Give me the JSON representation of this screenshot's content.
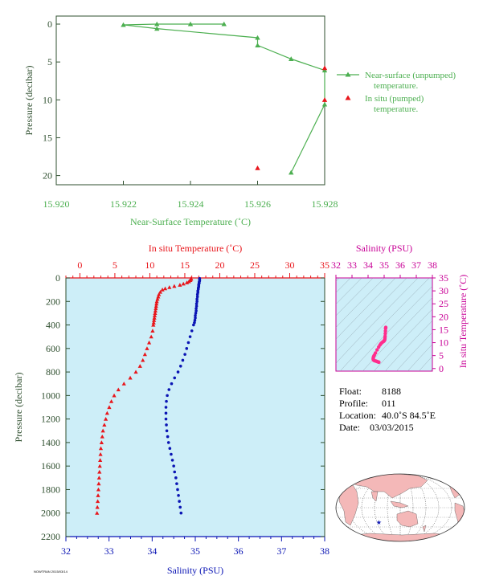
{
  "colors": {
    "green": "#4caf50",
    "axis_green": "#2f4f2f",
    "red": "#e8151b",
    "blue": "#0a14b4",
    "magenta": "#c80096",
    "pink": "#ff2d8c",
    "panel_bg": "#cdeef8",
    "land": "#f4b8b8",
    "ocean": "#ffffff"
  },
  "footer": "NOWTRAN 2015/03/14",
  "chart_data": [
    {
      "id": "near_surface",
      "type": "line",
      "xlabel": "Near-Surface Temperature (˚C)",
      "ylabel": "Pressure (decibar)",
      "xlim": [
        15.92,
        15.928
      ],
      "ylim": [
        0,
        22
      ],
      "y_inverted": true,
      "xticks": [
        "15.920",
        "15.922",
        "15.924",
        "15.926",
        "15.928"
      ],
      "xtick_values": [
        15.92,
        15.922,
        15.924,
        15.926,
        15.928
      ],
      "yticks": [
        "0",
        "5",
        "10",
        "15",
        "20"
      ],
      "ytick_values": [
        0,
        5,
        10,
        15,
        20
      ],
      "grid": false,
      "legend_placement": "right",
      "series": [
        {
          "name": "Near-surface (unpumped) temperature.",
          "legend_lines": [
            "Near-surface (unpumped)",
            "temperature."
          ],
          "marker": "triangle",
          "line": true,
          "points": [
            [
              15.925,
              0.0
            ],
            [
              15.924,
              0.0
            ],
            [
              15.923,
              0.0
            ],
            [
              15.922,
              0.1
            ],
            [
              15.923,
              0.6
            ],
            [
              15.926,
              1.8
            ],
            [
              15.926,
              2.8
            ],
            [
              15.927,
              4.6
            ],
            [
              15.928,
              6.1
            ],
            [
              15.928,
              10.6
            ],
            [
              15.927,
              19.6
            ]
          ]
        },
        {
          "name": "In situ (pumped) temperature.",
          "legend_lines": [
            "In situ (pumped)",
            "temperature."
          ],
          "marker": "triangle",
          "line": false,
          "points": [
            [
              15.928,
              5.8
            ],
            [
              15.928,
              10.0
            ],
            [
              15.926,
              19.0
            ]
          ]
        }
      ]
    },
    {
      "id": "profile",
      "type": "scatter",
      "ylabel": "Pressure (decibar)",
      "ylim": [
        0,
        2200
      ],
      "y_inverted": true,
      "yticks": [
        "0",
        "200",
        "400",
        "600",
        "800",
        "1000",
        "1200",
        "1400",
        "1600",
        "1800",
        "2000",
        "2200"
      ],
      "ytick_values": [
        0,
        200,
        400,
        600,
        800,
        1000,
        1200,
        1400,
        1600,
        1800,
        2000,
        2200
      ],
      "temp_axis": {
        "label": "In situ Temperature (˚C)",
        "lim": [
          -2,
          35
        ],
        "ticks": [
          "0",
          "5",
          "10",
          "15",
          "20",
          "25",
          "30",
          "35"
        ],
        "tick_values": [
          0,
          5,
          10,
          15,
          20,
          25,
          30,
          35
        ]
      },
      "sal_axis": {
        "label": "Salinity (PSU)",
        "lim": [
          32,
          38
        ],
        "ticks": [
          "32",
          "33",
          "34",
          "35",
          "36",
          "37",
          "38"
        ],
        "tick_values": [
          32,
          33,
          34,
          35,
          36,
          37,
          38
        ]
      },
      "grid": false,
      "temperature_profile": [
        [
          15.9,
          5
        ],
        [
          15.9,
          10
        ],
        [
          15.8,
          20
        ],
        [
          15.6,
          30
        ],
        [
          15.3,
          40
        ],
        [
          14.8,
          50
        ],
        [
          14.3,
          60
        ],
        [
          13.5,
          70
        ],
        [
          12.8,
          80
        ],
        [
          12.2,
          90
        ],
        [
          11.8,
          100
        ],
        [
          11.5,
          120
        ],
        [
          11.3,
          140
        ],
        [
          11.2,
          160
        ],
        [
          11.1,
          180
        ],
        [
          11.0,
          200
        ],
        [
          10.95,
          220
        ],
        [
          10.9,
          240
        ],
        [
          10.85,
          260
        ],
        [
          10.8,
          280
        ],
        [
          10.75,
          300
        ],
        [
          10.7,
          320
        ],
        [
          10.65,
          340
        ],
        [
          10.6,
          360
        ],
        [
          10.55,
          380
        ],
        [
          10.5,
          400
        ],
        [
          10.4,
          450
        ],
        [
          10.2,
          500
        ],
        [
          9.9,
          550
        ],
        [
          9.6,
          600
        ],
        [
          9.3,
          650
        ],
        [
          9.0,
          700
        ],
        [
          8.6,
          750
        ],
        [
          8.0,
          800
        ],
        [
          7.2,
          850
        ],
        [
          6.3,
          900
        ],
        [
          5.5,
          950
        ],
        [
          4.9,
          1000
        ],
        [
          4.5,
          1050
        ],
        [
          4.2,
          1100
        ],
        [
          3.9,
          1150
        ],
        [
          3.7,
          1200
        ],
        [
          3.5,
          1250
        ],
        [
          3.3,
          1300
        ],
        [
          3.2,
          1350
        ],
        [
          3.1,
          1400
        ],
        [
          3.0,
          1450
        ],
        [
          2.95,
          1500
        ],
        [
          2.9,
          1550
        ],
        [
          2.85,
          1600
        ],
        [
          2.8,
          1650
        ],
        [
          2.75,
          1700
        ],
        [
          2.7,
          1750
        ],
        [
          2.65,
          1800
        ],
        [
          2.6,
          1850
        ],
        [
          2.55,
          1900
        ],
        [
          2.5,
          1950
        ],
        [
          2.45,
          2000
        ]
      ],
      "salinity_profile": [
        [
          35.1,
          5
        ],
        [
          35.1,
          15
        ],
        [
          35.1,
          25
        ],
        [
          35.09,
          35
        ],
        [
          35.09,
          45
        ],
        [
          35.08,
          55
        ],
        [
          35.08,
          65
        ],
        [
          35.08,
          75
        ],
        [
          35.07,
          85
        ],
        [
          35.07,
          95
        ],
        [
          35.06,
          110
        ],
        [
          35.06,
          125
        ],
        [
          35.05,
          140
        ],
        [
          35.05,
          160
        ],
        [
          35.04,
          180
        ],
        [
          35.04,
          200
        ],
        [
          35.03,
          220
        ],
        [
          35.03,
          240
        ],
        [
          35.02,
          260
        ],
        [
          35.02,
          280
        ],
        [
          35.01,
          300
        ],
        [
          35.0,
          320
        ],
        [
          35.0,
          340
        ],
        [
          34.99,
          360
        ],
        [
          34.98,
          380
        ],
        [
          34.96,
          400
        ],
        [
          34.92,
          450
        ],
        [
          34.88,
          500
        ],
        [
          34.84,
          550
        ],
        [
          34.8,
          600
        ],
        [
          34.76,
          650
        ],
        [
          34.71,
          700
        ],
        [
          34.66,
          750
        ],
        [
          34.6,
          800
        ],
        [
          34.52,
          850
        ],
        [
          34.45,
          900
        ],
        [
          34.39,
          950
        ],
        [
          34.35,
          1000
        ],
        [
          34.33,
          1050
        ],
        [
          34.32,
          1100
        ],
        [
          34.32,
          1150
        ],
        [
          34.32,
          1200
        ],
        [
          34.33,
          1250
        ],
        [
          34.34,
          1300
        ],
        [
          34.36,
          1350
        ],
        [
          34.38,
          1400
        ],
        [
          34.41,
          1450
        ],
        [
          34.44,
          1500
        ],
        [
          34.47,
          1550
        ],
        [
          34.5,
          1600
        ],
        [
          34.52,
          1650
        ],
        [
          34.55,
          1700
        ],
        [
          34.57,
          1750
        ],
        [
          34.59,
          1800
        ],
        [
          34.61,
          1850
        ],
        [
          34.63,
          1900
        ],
        [
          34.65,
          1950
        ],
        [
          34.67,
          2000
        ]
      ]
    },
    {
      "id": "ts_diagram",
      "type": "scatter",
      "xlabel": "Salinity (PSU)",
      "ylabel": "In situ Temperature (˚C)",
      "xlim": [
        32,
        38
      ],
      "ylim": [
        -1,
        35
      ],
      "xticks": [
        "32",
        "33",
        "34",
        "35",
        "36",
        "37",
        "38"
      ],
      "xtick_values": [
        32,
        33,
        34,
        35,
        36,
        37,
        38
      ],
      "yticks": [
        "0",
        "5",
        "10",
        "15",
        "20",
        "25",
        "30",
        "35"
      ],
      "ytick_values": [
        0,
        5,
        10,
        15,
        20,
        25,
        30,
        35
      ],
      "density_contours": true,
      "points": [
        [
          35.1,
          15.9
        ],
        [
          35.09,
          15.5
        ],
        [
          35.08,
          14.5
        ],
        [
          35.07,
          13.5
        ],
        [
          35.06,
          12.5
        ],
        [
          35.05,
          11.8
        ],
        [
          35.04,
          11.2
        ],
        [
          35.02,
          10.9
        ],
        [
          35.0,
          10.7
        ],
        [
          34.97,
          10.5
        ],
        [
          34.92,
          10.3
        ],
        [
          34.86,
          10.0
        ],
        [
          34.8,
          9.6
        ],
        [
          34.74,
          9.1
        ],
        [
          34.66,
          8.3
        ],
        [
          34.56,
          7.2
        ],
        [
          34.46,
          6.0
        ],
        [
          34.39,
          5.2
        ],
        [
          34.35,
          4.7
        ],
        [
          34.33,
          4.3
        ],
        [
          34.32,
          3.9
        ],
        [
          34.32,
          3.6
        ],
        [
          34.34,
          3.3
        ],
        [
          34.38,
          3.1
        ],
        [
          34.44,
          2.95
        ],
        [
          34.5,
          2.85
        ],
        [
          34.56,
          2.7
        ],
        [
          34.61,
          2.6
        ],
        [
          34.67,
          2.45
        ]
      ]
    }
  ],
  "info": {
    "float_label": "Float:",
    "float_value": "8188",
    "profile_label": "Profile:",
    "profile_value": "011",
    "location_label": "Location:",
    "location_value": "40.0˚S  84.5˚E",
    "date_label": "Date:",
    "date_value": "03/03/2015"
  },
  "map": {
    "marker_lon": 84.5,
    "marker_lat": -40.0,
    "marker_icon": "star-icon"
  }
}
